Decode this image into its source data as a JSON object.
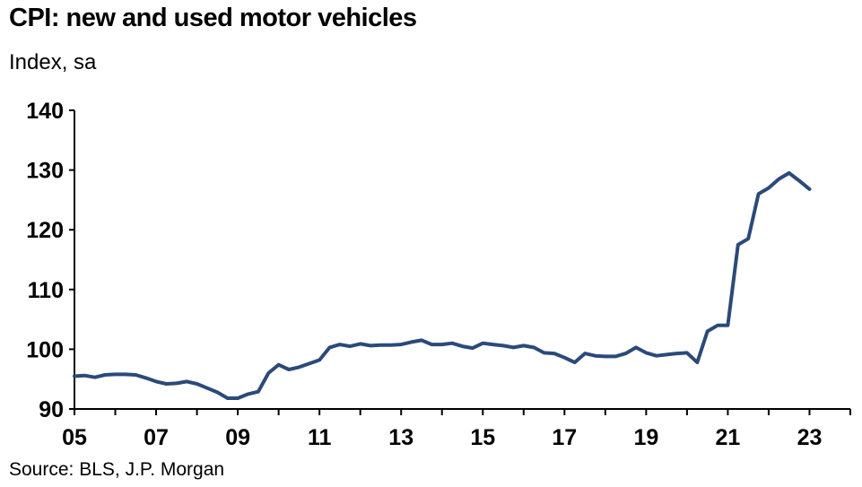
{
  "title": "CPI: new and used motor vehicles",
  "subtitle": "Index, sa",
  "source": "Source: BLS, J.P. Morgan",
  "colors": {
    "series": "#2b4a7a",
    "axis": "#000000"
  },
  "chart_data": {
    "type": "line",
    "title": "CPI: new and used motor vehicles",
    "ylabel": "Index, sa",
    "xlabel": "",
    "xlim": [
      2005,
      2024
    ],
    "ylim": [
      90,
      140
    ],
    "x_ticks": [
      "05",
      "07",
      "09",
      "11",
      "13",
      "15",
      "17",
      "19",
      "21",
      "23"
    ],
    "y_ticks": [
      "140",
      "130",
      "120",
      "110",
      "100",
      "90"
    ],
    "grid": false,
    "legend": "none",
    "series": [
      {
        "x": [
          2005.0,
          2005.25,
          2005.5,
          2005.75,
          2006.0,
          2006.25,
          2006.5,
          2006.75,
          2007.0,
          2007.25,
          2007.5,
          2007.75,
          2008.0,
          2008.25,
          2008.5,
          2008.75,
          2009.0,
          2009.25,
          2009.5,
          2009.75,
          2010.0,
          2010.25,
          2010.5,
          2010.75,
          2011.0,
          2011.25,
          2011.5,
          2011.75,
          2012.0,
          2012.25,
          2012.5,
          2012.75,
          2013.0,
          2013.25,
          2013.5,
          2013.75,
          2014.0,
          2014.25,
          2014.5,
          2014.75,
          2015.0,
          2015.25,
          2015.5,
          2015.75,
          2016.0,
          2016.25,
          2016.5,
          2016.75,
          2017.0,
          2017.25,
          2017.5,
          2017.75,
          2018.0,
          2018.25,
          2018.5,
          2018.75,
          2019.0,
          2019.25,
          2019.5,
          2019.75,
          2020.0,
          2020.25,
          2020.5,
          2020.75,
          2021.0,
          2021.25,
          2021.5,
          2021.75,
          2022.0,
          2022.25,
          2022.5,
          2022.75,
          2023.0
        ],
        "values": [
          95.5,
          95.6,
          95.3,
          95.7,
          95.8,
          95.8,
          95.7,
          95.2,
          94.6,
          94.2,
          94.3,
          94.6,
          94.2,
          93.5,
          92.8,
          91.8,
          91.8,
          92.5,
          92.9,
          96.0,
          97.4,
          96.6,
          97.0,
          97.6,
          98.2,
          100.3,
          100.8,
          100.5,
          100.9,
          100.6,
          100.7,
          100.7,
          100.8,
          101.2,
          101.5,
          100.8,
          100.8,
          101.0,
          100.5,
          100.2,
          101.0,
          100.8,
          100.6,
          100.3,
          100.6,
          100.3,
          99.4,
          99.3,
          98.6,
          97.8,
          99.3,
          98.9,
          98.8,
          98.8,
          99.3,
          100.3,
          99.4,
          98.9,
          99.1,
          99.3,
          99.4,
          97.8,
          103.0,
          104.0,
          104.0,
          117.5,
          118.5,
          126.0,
          127.0,
          128.5,
          129.5,
          128.2,
          126.8
        ]
      }
    ]
  }
}
